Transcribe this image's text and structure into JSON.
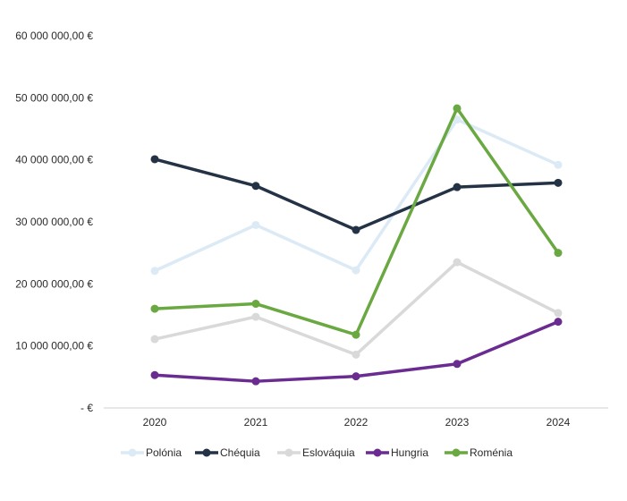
{
  "chart_data": {
    "type": "line",
    "title": "",
    "xlabel": "",
    "ylabel": "",
    "categories": [
      "2020",
      "2021",
      "2022",
      "2023",
      "2024"
    ],
    "ylim": [
      0,
      60000000
    ],
    "y_ticks": [
      {
        "value": 0,
        "label": "-  €"
      },
      {
        "value": 10000000,
        "label": "10 000 000,00 €"
      },
      {
        "value": 20000000,
        "label": "20 000 000,00 €"
      },
      {
        "value": 30000000,
        "label": "30 000 000,00 €"
      },
      {
        "value": 40000000,
        "label": "40 000 000,00 €"
      },
      {
        "value": 50000000,
        "label": "50 000 000,00 €"
      },
      {
        "value": 60000000,
        "label": "60 000 000,00 €"
      }
    ],
    "grid": false,
    "legend_position": "bottom",
    "series": [
      {
        "name": "Polónia",
        "color": "#dceaf6",
        "values": [
          22100000,
          29500000,
          22200000,
          46500000,
          39200000
        ]
      },
      {
        "name": "Chéquia",
        "color": "#243246",
        "values": [
          40100000,
          35800000,
          28700000,
          35600000,
          36300000
        ]
      },
      {
        "name": "Eslováquia",
        "color": "#d9d9d9",
        "values": [
          11100000,
          14700000,
          8600000,
          23500000,
          15300000
        ]
      },
      {
        "name": "Hungria",
        "color": "#6a2c91",
        "values": [
          5300000,
          4300000,
          5100000,
          7100000,
          13900000
        ]
      },
      {
        "name": "Roménia",
        "color": "#6aa842",
        "values": [
          16000000,
          16800000,
          11800000,
          48300000,
          25000000
        ]
      }
    ]
  }
}
